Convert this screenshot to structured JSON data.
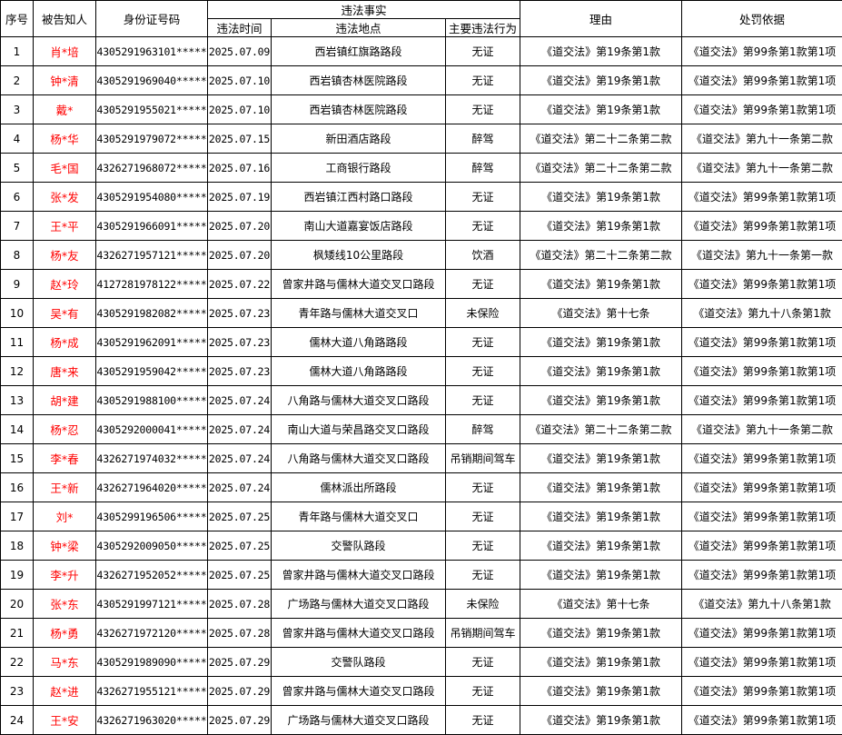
{
  "headers": {
    "index": "序号",
    "person": "被告知人",
    "id_number": "身份证号码",
    "facts": "违法事实",
    "time": "违法时间",
    "location": "违法地点",
    "behavior": "主要违法行为",
    "reason": "理由",
    "basis": "处罚依据"
  },
  "colors": {
    "name_text": "#ff0000",
    "border": "#000000"
  },
  "rows": [
    {
      "index": "1",
      "person": "肖*培",
      "id_number": "4305291963101*****",
      "time": "2025.07.09",
      "location": "西岩镇红旗路路段",
      "behavior": "无证",
      "reason": "《道交法》第19条第1款",
      "basis": "《道交法》第99条第1款第1项"
    },
    {
      "index": "2",
      "person": "钟*清",
      "id_number": "4305291969040*****",
      "time": "2025.07.10",
      "location": "西岩镇杏林医院路段",
      "behavior": "无证",
      "reason": "《道交法》第19条第1款",
      "basis": "《道交法》第99条第1款第1项"
    },
    {
      "index": "3",
      "person": "戴*",
      "id_number": "4305291955021*****",
      "time": "2025.07.10",
      "location": "西岩镇杏林医院路段",
      "behavior": "无证",
      "reason": "《道交法》第19条第1款",
      "basis": "《道交法》第99条第1款第1项"
    },
    {
      "index": "4",
      "person": "杨*华",
      "id_number": "4305291979072*****",
      "time": "2025.07.15",
      "location": "新田酒店路段",
      "behavior": "醉驾",
      "reason": "《道交法》第二十二条第二款",
      "basis": "《道交法》第九十一条第二款"
    },
    {
      "index": "5",
      "person": "毛*国",
      "id_number": "4326271968072*****",
      "time": "2025.07.16",
      "location": "工商银行路段",
      "behavior": "醉驾",
      "reason": "《道交法》第二十二条第二款",
      "basis": "《道交法》第九十一条第二款"
    },
    {
      "index": "6",
      "person": "张*发",
      "id_number": "4305291954080*****",
      "time": "2025.07.19",
      "location": "西岩镇江西村路口路段",
      "behavior": "无证",
      "reason": "《道交法》第19条第1款",
      "basis": "《道交法》第99条第1款第1项"
    },
    {
      "index": "7",
      "person": "王*平",
      "id_number": "4305291966091*****",
      "time": "2025.07.20",
      "location": "南山大道嘉宴饭店路段",
      "behavior": "无证",
      "reason": "《道交法》第19条第1款",
      "basis": "《道交法》第99条第1款第1项"
    },
    {
      "index": "8",
      "person": "杨*友",
      "id_number": "4326271957121*****",
      "time": "2025.07.20",
      "location": "枫矮线10公里路段",
      "behavior": "饮酒",
      "reason": "《道交法》第二十二条第二款",
      "basis": "《道交法》第九十一条第一款"
    },
    {
      "index": "9",
      "person": "赵*玲",
      "id_number": "4127281978122*****",
      "time": "2025.07.22",
      "location": "曾家井路与儒林大道交叉口路段",
      "behavior": "无证",
      "reason": "《道交法》第19条第1款",
      "basis": "《道交法》第99条第1款第1项"
    },
    {
      "index": "10",
      "person": "吴*有",
      "id_number": "4305291982082*****",
      "time": "2025.07.23",
      "location": "青年路与儒林大道交叉口",
      "behavior": "未保险",
      "reason": "《道交法》第十七条",
      "basis": "《道交法》第九十八条第1款"
    },
    {
      "index": "11",
      "person": "杨*成",
      "id_number": "4305291962091*****",
      "time": "2025.07.23",
      "location": "儒林大道八角路路段",
      "behavior": "无证",
      "reason": "《道交法》第19条第1款",
      "basis": "《道交法》第99条第1款第1项"
    },
    {
      "index": "12",
      "person": "唐*来",
      "id_number": "4305291959042*****",
      "time": "2025.07.23",
      "location": "儒林大道八角路路段",
      "behavior": "无证",
      "reason": "《道交法》第19条第1款",
      "basis": "《道交法》第99条第1款第1项"
    },
    {
      "index": "13",
      "person": "胡*建",
      "id_number": "4305291988100*****",
      "time": "2025.07.24",
      "location": "八角路与儒林大道交叉口路段",
      "behavior": "无证",
      "reason": "《道交法》第19条第1款",
      "basis": "《道交法》第99条第1款第1项"
    },
    {
      "index": "14",
      "person": "杨*忍",
      "id_number": "4305292000041*****",
      "time": "2025.07.24",
      "location": "南山大道与荣昌路交叉口路段",
      "behavior": "醉驾",
      "reason": "《道交法》第二十二条第二款",
      "basis": "《道交法》第九十一条第二款"
    },
    {
      "index": "15",
      "person": "李*春",
      "id_number": "4326271974032*****",
      "time": "2025.07.24",
      "location": "八角路与儒林大道交叉口路段",
      "behavior": "吊销期间驾车",
      "reason": "《道交法》第19条第1款",
      "basis": "《道交法》第99条第1款第1项"
    },
    {
      "index": "16",
      "person": "王*新",
      "id_number": "4326271964020*****",
      "time": "2025.07.24",
      "location": "儒林派出所路段",
      "behavior": "无证",
      "reason": "《道交法》第19条第1款",
      "basis": "《道交法》第99条第1款第1项"
    },
    {
      "index": "17",
      "person": "刘*",
      "id_number": "4305299196506*****",
      "time": "2025.07.25",
      "location": "青年路与儒林大道交叉口",
      "behavior": "无证",
      "reason": "《道交法》第19条第1款",
      "basis": "《道交法》第99条第1款第1项"
    },
    {
      "index": "18",
      "person": "钟*梁",
      "id_number": "4305292009050*****",
      "time": "2025.07.25",
      "location": "交警队路段",
      "behavior": "无证",
      "reason": "《道交法》第19条第1款",
      "basis": "《道交法》第99条第1款第1项"
    },
    {
      "index": "19",
      "person": "李*升",
      "id_number": "4326271952052*****",
      "time": "2025.07.25",
      "location": "曾家井路与儒林大道交叉口路段",
      "behavior": "无证",
      "reason": "《道交法》第19条第1款",
      "basis": "《道交法》第99条第1款第1项"
    },
    {
      "index": "20",
      "person": "张*东",
      "id_number": "4305291997121*****",
      "time": "2025.07.28",
      "location": "广场路与儒林大道交叉口路段",
      "behavior": "未保险",
      "reason": "《道交法》第十七条",
      "basis": "《道交法》第九十八条第1款"
    },
    {
      "index": "21",
      "person": "杨*勇",
      "id_number": "4326271972120*****",
      "time": "2025.07.28",
      "location": "曾家井路与儒林大道交叉口路段",
      "behavior": "吊销期间驾车",
      "reason": "《道交法》第19条第1款",
      "basis": "《道交法》第99条第1款第1项"
    },
    {
      "index": "22",
      "person": "马*东",
      "id_number": "4305291989090*****",
      "time": "2025.07.29",
      "location": "交警队路段",
      "behavior": "无证",
      "reason": "《道交法》第19条第1款",
      "basis": "《道交法》第99条第1款第1项"
    },
    {
      "index": "23",
      "person": "赵*进",
      "id_number": "4326271955121*****",
      "time": "2025.07.29",
      "location": "曾家井路与儒林大道交叉口路段",
      "behavior": "无证",
      "reason": "《道交法》第19条第1款",
      "basis": "《道交法》第99条第1款第1项"
    },
    {
      "index": "24",
      "person": "王*安",
      "id_number": "4326271963020*****",
      "time": "2025.07.29",
      "location": "广场路与儒林大道交叉口路段",
      "behavior": "无证",
      "reason": "《道交法》第19条第1款",
      "basis": "《道交法》第99条第1款第1项"
    }
  ]
}
